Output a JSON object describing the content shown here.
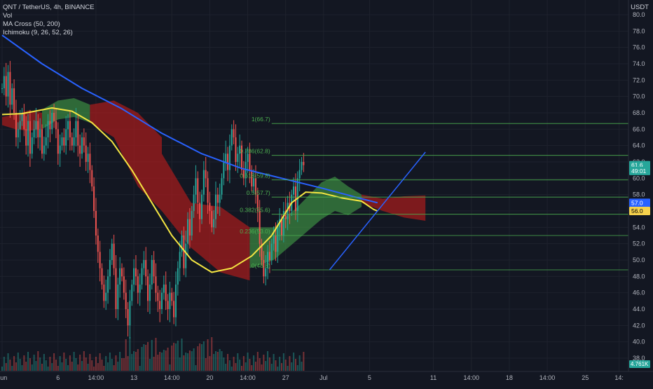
{
  "legend": {
    "symbol_line": "QNT / TetherUS, 4h, BINANCE",
    "vol_label": "Vol",
    "ma_label": "MA Cross (50, 200)",
    "ichimoku_label": "Ichimoku (9, 26, 52, 26)"
  },
  "currency": "USDT",
  "chart_data": {
    "type": "candlestick",
    "symbol": "QNT / TetherUS",
    "timeframe": "4h",
    "exchange": "BINANCE",
    "y_axis": {
      "ticks": [
        "80.0",
        "78.0",
        "76.0",
        "74.0",
        "72.0",
        "70.0",
        "68.0",
        "66.0",
        "64.0",
        "62.0",
        "60.0",
        "58.0",
        "56.0",
        "54.0",
        "52.0",
        "50.0",
        "48.0",
        "46.0",
        "44.0",
        "42.0",
        "40.0",
        "38.0"
      ],
      "ylim": [
        37,
        81
      ]
    },
    "x_axis": {
      "ticks": [
        {
          "label": "Jun",
          "i": 0
        },
        {
          "label": "6",
          "i": 28
        },
        {
          "label": "14:00",
          "i": 47
        },
        {
          "label": "13",
          "i": 66
        },
        {
          "label": "14:00",
          "i": 85
        },
        {
          "label": "20",
          "i": 104
        },
        {
          "label": "14:00",
          "i": 123
        },
        {
          "label": "27",
          "i": 142
        },
        {
          "label": "Jul",
          "i": 161
        },
        {
          "label": "5",
          "i": 184
        },
        {
          "label": "11",
          "i": 216
        },
        {
          "label": "14:00",
          "i": 235
        },
        {
          "label": "18",
          "i": 254
        },
        {
          "label": "14:00",
          "i": 273
        },
        {
          "label": "25",
          "i": 292
        },
        {
          "label": "14:",
          "i": 309
        }
      ]
    },
    "closes": [
      71,
      72.5,
      70,
      73,
      69,
      71,
      68,
      65,
      66,
      67,
      68,
      66,
      64,
      67,
      63,
      65,
      66,
      67,
      65,
      66,
      63,
      64,
      65,
      67,
      66,
      68,
      67,
      66,
      63,
      64,
      65,
      64,
      66,
      67,
      65,
      64,
      65,
      67,
      64,
      63,
      65,
      64,
      62,
      63,
      61,
      59,
      56,
      53,
      51,
      49,
      47,
      45,
      46,
      48,
      50,
      52,
      49,
      44,
      47,
      49,
      48,
      46,
      44,
      42,
      45,
      47,
      49,
      48,
      46,
      47,
      49,
      50,
      48,
      45,
      47,
      50,
      48,
      46,
      45,
      44,
      46,
      47,
      45,
      44,
      46,
      45,
      43,
      47,
      49,
      51,
      53,
      49,
      52,
      55,
      53,
      56,
      58,
      60,
      57,
      55,
      58,
      61,
      60,
      57,
      56,
      54,
      55,
      58,
      57,
      58,
      60,
      62,
      63,
      61,
      64,
      66,
      65,
      62,
      63,
      64,
      61,
      60,
      62,
      63,
      61,
      59,
      60,
      58,
      56,
      52,
      50,
      48,
      49,
      51,
      50,
      52,
      53,
      51,
      54,
      55,
      53,
      56,
      55,
      57,
      56,
      58,
      59,
      56,
      60,
      61,
      62,
      61.6
    ],
    "price_lines": [
      {
        "label": "61.6",
        "value": 61.6,
        "color": "#26a69a"
      },
      {
        "label": "49:01",
        "value": 60.9,
        "color": "#26a69a"
      },
      {
        "label": "57.0",
        "value": 57.0,
        "color": "#2962ff"
      },
      {
        "label": "56.0",
        "value": 56.0,
        "color": "#f5d14c"
      }
    ],
    "volume_label": "4.761K",
    "fibonacci": [
      {
        "ratio": "1",
        "price": "66.7",
        "value": 66.7,
        "label": "1(66.7)"
      },
      {
        "ratio": "0.786",
        "price": "62.8",
        "value": 62.8,
        "label": "0.786(62.8)"
      },
      {
        "ratio": "0.618",
        "price": "59.8",
        "value": 59.8,
        "label": "0.618(59.8)"
      },
      {
        "ratio": "0.5",
        "price": "57.7",
        "value": 57.7,
        "label": "0.5(57.7)"
      },
      {
        "ratio": "0.382",
        "price": "55.6",
        "value": 55.6,
        "label": "0.382(55.6)"
      },
      {
        "ratio": "0.236",
        "price": "53.0",
        "value": 53.0,
        "label": "0.236(53.0)"
      },
      {
        "ratio": "0",
        "price": "48.8",
        "value": 48.8,
        "label": "0(48.8)"
      }
    ],
    "trendline": {
      "from": {
        "i": 164,
        "v": 48.8
      },
      "to": {
        "i": 212,
        "v": 63.2
      }
    },
    "ma200": [
      {
        "i": 0,
        "v": 77.5
      },
      {
        "i": 20,
        "v": 74
      },
      {
        "i": 40,
        "v": 71
      },
      {
        "i": 60,
        "v": 68.5
      },
      {
        "i": 80,
        "v": 65.5
      },
      {
        "i": 100,
        "v": 63
      },
      {
        "i": 120,
        "v": 61.2
      },
      {
        "i": 140,
        "v": 60
      },
      {
        "i": 160,
        "v": 58.8
      },
      {
        "i": 180,
        "v": 57.5
      },
      {
        "i": 188,
        "v": 57.0
      }
    ],
    "ma50": [
      {
        "i": 0,
        "v": 67.8
      },
      {
        "i": 10,
        "v": 67.9
      },
      {
        "i": 25,
        "v": 68.6
      },
      {
        "i": 35,
        "v": 68.2
      },
      {
        "i": 45,
        "v": 66.8
      },
      {
        "i": 55,
        "v": 64.5
      },
      {
        "i": 65,
        "v": 61
      },
      {
        "i": 75,
        "v": 57
      },
      {
        "i": 85,
        "v": 53
      },
      {
        "i": 95,
        "v": 50
      },
      {
        "i": 105,
        "v": 48.5
      },
      {
        "i": 115,
        "v": 49
      },
      {
        "i": 125,
        "v": 50.5
      },
      {
        "i": 135,
        "v": 53
      },
      {
        "i": 145,
        "v": 57
      },
      {
        "i": 152,
        "v": 58.3
      },
      {
        "i": 160,
        "v": 58.2
      },
      {
        "i": 170,
        "v": 57.6
      },
      {
        "i": 180,
        "v": 57.2
      },
      {
        "i": 186,
        "v": 56.2
      },
      {
        "i": 188,
        "v": 56.0
      }
    ],
    "ichimoku_cloud": [
      {
        "from": 0,
        "to": 20,
        "top": [
          67.5,
          67.8,
          68.3,
          68.0
        ],
        "bottom": [
          66.5,
          66.0,
          65.8,
          66.0
        ],
        "color": "red"
      },
      {
        "from": 20,
        "to": 44,
        "top": [
          68.4,
          69.5,
          69.8,
          69.0
        ],
        "bottom": [
          66.0,
          67.2,
          67.5,
          66.8
        ],
        "color": "green"
      },
      {
        "from": 44,
        "to": 80,
        "top": [
          69.0,
          69.5,
          68.0,
          65.0
        ],
        "bottom": [
          66.8,
          65.0,
          59.0,
          56.0
        ],
        "color": "red"
      },
      {
        "from": 80,
        "to": 124,
        "top": [
          63.0,
          57.0,
          56.5,
          54.0
        ],
        "bottom": [
          56.0,
          51.5,
          48.5,
          47.5
        ],
        "color": "red"
      },
      {
        "from": 124,
        "to": 160,
        "top": [
          54.0,
          54.0,
          56.5,
          59.5
        ],
        "bottom": [
          49.0,
          50.0,
          52.5,
          55.0
        ],
        "color": "green"
      },
      {
        "from": 160,
        "to": 180,
        "top": [
          59.5,
          60.2,
          59.0,
          58.0
        ],
        "bottom": [
          55.0,
          56.0,
          55.5,
          56.5
        ],
        "color": "green"
      },
      {
        "from": 180,
        "to": 212,
        "top": [
          58.0,
          57.5,
          57.8,
          57.9
        ],
        "bottom": [
          57.0,
          56.0,
          55.2,
          54.8
        ],
        "color": "red"
      }
    ]
  }
}
